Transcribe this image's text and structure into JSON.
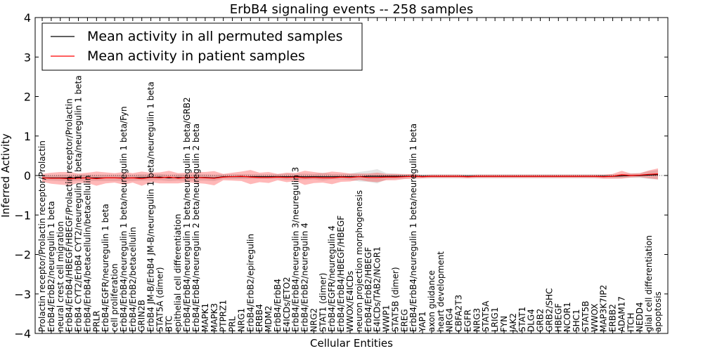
{
  "chart_data": {
    "type": "line",
    "title": "ErbB4 signaling events -- 258 samples",
    "xlabel": "Cellular Entities",
    "ylabel": "Inferred Activity",
    "ylim": [
      -4,
      4
    ],
    "yticks": [
      -4,
      -3,
      -2,
      -1,
      0,
      1,
      2,
      3,
      4
    ],
    "grid": false,
    "legend_position": "top-left",
    "categories": [
      "Prolactin receptor/Prolactin receptor/Prolactin",
      "ErbB4/ErbB2/neuregulin 1 beta",
      "neural crest cell migration",
      "ErbB4/ErbB4/HBEGF/HBEGF/Prolactin receptor/Prolactin",
      "ErbB4 CYT2/ErbB4 CYT2/neuregulin 1 beta/neuregulin 1 beta",
      "ErbB4/ErbB4/betacellulin/betacellulin",
      "PRLR",
      "ErbB4/EGFR/neuregulin 1 beta",
      "cell proliferation",
      "ErbB4/ErbB4/neuregulin 1 beta/neuregulin 1 beta/Fyn",
      "ErbB4/ErbB2/betacellulin",
      "GRIN2B",
      "ErbB4 JM-B/ErbB4 JM-B/neuregulin 1 beta/neuregulin 1 beta",
      "STAT5A (dimer)",
      "BTC",
      "epithelial cell differentiation",
      "ErbB4/ErbB4/neuregulin 1 beta/neuregulin 1 beta/GRB2",
      "ErbB4/ErbB4/neuregulin 2 beta/neuregulin 2 beta",
      "MAPK1",
      "MAPK3",
      "PTPRZ1",
      "PRL",
      "NRG1",
      "ErbB4/ErbB2/epiregulin",
      "ERBB4",
      "MDM2",
      "ErbB4/ErbB4",
      "E4ICDs/ETO2",
      "ErbB4/ErbB4/neuregulin 3/neuregulin 3",
      "ErbB4/ErbB2/neuregulin 4",
      "NRG2",
      "STAT1 (dimer)",
      "ErbB4/EGFR/neuregulin 4",
      "ErbB4/ErbB4/HBEGF/HBEGF",
      "WWOX/E4ICDs",
      "neuron projection morphogenesis",
      "ErbB4/ErbB2/HBEGF",
      "E4ICDs/TAB2/NCoR1",
      "WWP1",
      "STAT5B (dimer)",
      "EREG",
      "ErbB4/ErbB4/neuregulin 1 beta/neuregulin 1 beta",
      "YAP1",
      "axon guidance",
      "heart development",
      "NRG4",
      "CBFA2T3",
      "EGFR",
      "NRG3",
      "STAT5A",
      "LRIG1",
      "FYN",
      "JAK2",
      "STAT1",
      "DLG4",
      "GRB2",
      "GRB2/SHC",
      "HBEGF",
      "NCOR1",
      "SHC1",
      "STAT5B",
      "WWOX",
      "MAP3K7IP2",
      "ERBB2",
      "ADAM17",
      "ITCH",
      "NEDD4",
      "glial cell differentiation",
      "apoptosis"
    ],
    "series": [
      {
        "name": "Mean activity in all permuted samples",
        "color": "#000000",
        "values": [
          -0.06,
          -0.06,
          -0.06,
          -0.06,
          -0.06,
          -0.06,
          -0.06,
          -0.06,
          -0.06,
          -0.06,
          -0.06,
          -0.05,
          -0.05,
          -0.04,
          -0.06,
          -0.05,
          -0.06,
          -0.05,
          -0.05,
          -0.06,
          -0.03,
          -0.03,
          -0.03,
          -0.03,
          -0.03,
          -0.03,
          -0.03,
          -0.03,
          -0.03,
          -0.03,
          -0.03,
          -0.03,
          -0.03,
          -0.03,
          -0.03,
          -0.03,
          -0.02,
          -0.02,
          -0.02,
          -0.02,
          -0.02,
          -0.02,
          -0.02,
          -0.02,
          -0.02,
          -0.02,
          -0.02,
          -0.02,
          -0.02,
          -0.02,
          -0.02,
          -0.02,
          -0.02,
          -0.02,
          -0.02,
          -0.02,
          -0.02,
          -0.02,
          -0.02,
          -0.02,
          -0.02,
          -0.02,
          -0.02,
          -0.02,
          -0.01,
          0.0,
          0.0,
          0.01,
          0.02
        ],
        "band": [
          0.07,
          0.07,
          0.08,
          0.08,
          0.08,
          0.08,
          0.08,
          0.08,
          0.08,
          0.08,
          0.08,
          0.08,
          0.08,
          0.08,
          0.08,
          0.08,
          0.08,
          0.08,
          0.08,
          0.08,
          0.06,
          0.06,
          0.06,
          0.06,
          0.06,
          0.06,
          0.06,
          0.08,
          0.08,
          0.08,
          0.07,
          0.1,
          0.07,
          0.07,
          0.08,
          0.12,
          0.14,
          0.18,
          0.08,
          0.07,
          0.06,
          0.05,
          0.05,
          0.05,
          0.05,
          0.05,
          0.05,
          0.05,
          0.05,
          0.05,
          0.05,
          0.05,
          0.05,
          0.05,
          0.05,
          0.05,
          0.05,
          0.05,
          0.05,
          0.05,
          0.05,
          0.05,
          0.05,
          0.05,
          0.05,
          0.06,
          0.06,
          0.1,
          0.12
        ]
      },
      {
        "name": "Mean activity in patient samples",
        "color": "#ff0000",
        "values": [
          -0.06,
          -0.07,
          -0.07,
          -0.08,
          -0.07,
          -0.06,
          -0.08,
          -0.06,
          -0.06,
          -0.07,
          -0.06,
          -0.08,
          -0.05,
          -0.06,
          -0.04,
          -0.07,
          -0.05,
          -0.05,
          -0.06,
          -0.07,
          -0.04,
          -0.03,
          -0.02,
          -0.04,
          -0.05,
          -0.05,
          -0.04,
          -0.05,
          -0.04,
          -0.06,
          -0.05,
          -0.06,
          -0.06,
          -0.04,
          -0.05,
          -0.03,
          -0.05,
          -0.05,
          -0.04,
          -0.04,
          -0.03,
          -0.02,
          -0.03,
          -0.02,
          -0.02,
          -0.02,
          -0.02,
          -0.03,
          -0.02,
          -0.02,
          -0.02,
          -0.02,
          -0.02,
          -0.02,
          -0.02,
          -0.02,
          -0.02,
          -0.02,
          -0.02,
          -0.02,
          -0.02,
          -0.02,
          -0.03,
          -0.02,
          0.02,
          0.0,
          0.01,
          0.03,
          0.04
        ],
        "band": [
          0.1,
          0.14,
          0.16,
          0.17,
          0.12,
          0.13,
          0.18,
          0.14,
          0.12,
          0.16,
          0.12,
          0.18,
          0.12,
          0.14,
          0.16,
          0.13,
          0.12,
          0.14,
          0.15,
          0.18,
          0.08,
          0.1,
          0.12,
          0.18,
          0.12,
          0.14,
          0.08,
          0.12,
          0.1,
          0.18,
          0.14,
          0.12,
          0.16,
          0.12,
          0.1,
          0.08,
          0.1,
          0.12,
          0.08,
          0.08,
          0.06,
          0.06,
          0.04,
          0.04,
          0.04,
          0.04,
          0.04,
          0.04,
          0.04,
          0.04,
          0.04,
          0.04,
          0.04,
          0.04,
          0.04,
          0.04,
          0.04,
          0.04,
          0.04,
          0.04,
          0.04,
          0.04,
          0.05,
          0.06,
          0.1,
          0.05,
          0.05,
          0.1,
          0.14
        ]
      }
    ]
  }
}
